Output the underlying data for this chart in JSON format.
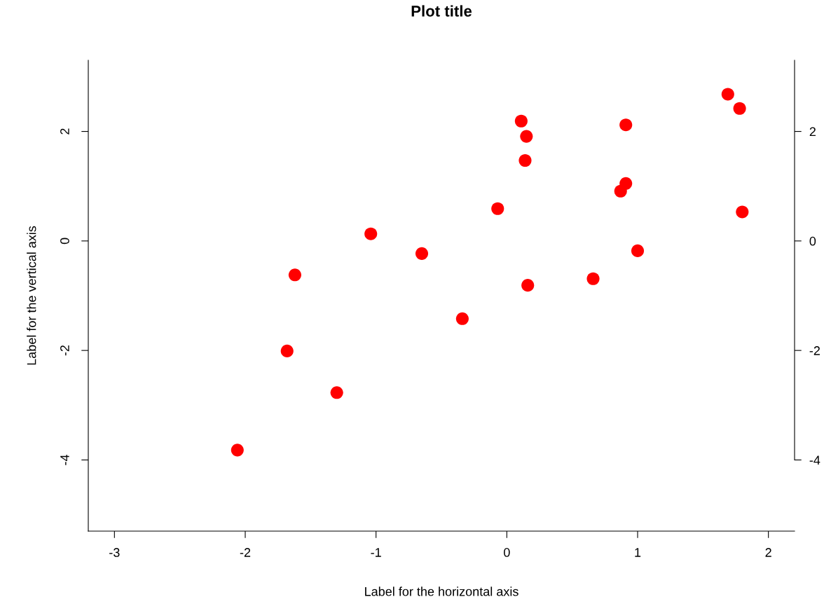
{
  "chart_data": {
    "type": "scatter",
    "title": "Plot title",
    "xlabel": "Label for the horizontal axis",
    "ylabel": "Label for the vertical axis",
    "x": [
      -2.06,
      -1.68,
      -1.62,
      -1.3,
      -1.04,
      -0.65,
      -0.34,
      -0.07,
      0.11,
      0.15,
      0.14,
      0.16,
      0.66,
      0.87,
      0.91,
      0.91,
      1.0,
      1.69,
      1.78,
      1.8
    ],
    "series": [
      {
        "color": "#ff0000",
        "values": [
          -3.82,
          -2.01,
          -0.62,
          -2.77,
          0.13,
          -0.23,
          -1.42,
          0.59,
          2.19,
          1.91,
          1.47,
          -0.81,
          -0.69,
          0.91,
          1.05,
          2.12,
          -0.18,
          2.68,
          2.42,
          0.53
        ]
      }
    ],
    "xlim": [
      -3.2,
      2.2
    ],
    "xticks": [
      -3,
      -2,
      -1,
      0,
      1,
      2
    ],
    "ylim": [
      -5.3,
      3.3
    ],
    "yticks": [
      -4,
      -2,
      0,
      2
    ],
    "y2lim": [
      -5.3,
      3.3
    ],
    "y2ticks": [
      -4,
      -2,
      0,
      2
    ],
    "marker": "circle",
    "grid": false,
    "legend": false
  }
}
